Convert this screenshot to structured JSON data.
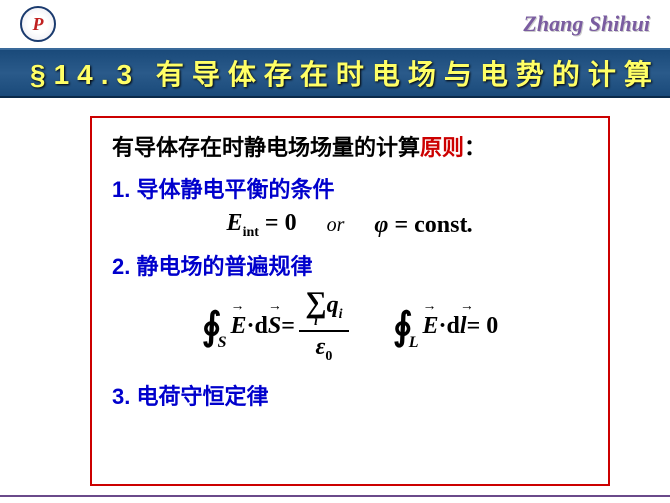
{
  "header": {
    "logo_text": "P",
    "author": "Zhang Shihui"
  },
  "title": "§14.3 有导体存在时电场与电势的计算",
  "content": {
    "intro_black": "有导体存在时静电场场量的计算",
    "intro_red": "原则",
    "intro_colon": "：",
    "point1": "1. 导体静电平衡的条件",
    "eq1": {
      "lhs_var": "E",
      "lhs_sub": "int",
      "eq": " = 0",
      "or": "or",
      "rhs_var": "φ",
      "rhs_eq": " = const",
      "period": "."
    },
    "point2": "2. 静电场的普遍规律",
    "eq2": {
      "left": {
        "sub": "S",
        "E": "E",
        "dot": " · ",
        "d": "d",
        "S": "S",
        "eq": " = ",
        "sum_var": "q",
        "sum_sub": "i",
        "sum_idx": "i",
        "denom_var": "ε",
        "denom_sub": "0"
      },
      "right": {
        "sub": "L",
        "E": "E",
        "dot": " · ",
        "d": "d",
        "l": "l",
        "eq": " = 0"
      }
    },
    "point3": "3. 电荷守恒定律"
  },
  "colors": {
    "title_bg": "#1a4a7a",
    "title_text": "#ffff66",
    "border": "#cc0000",
    "point_color": "#0000cc",
    "red": "#cc0000"
  }
}
